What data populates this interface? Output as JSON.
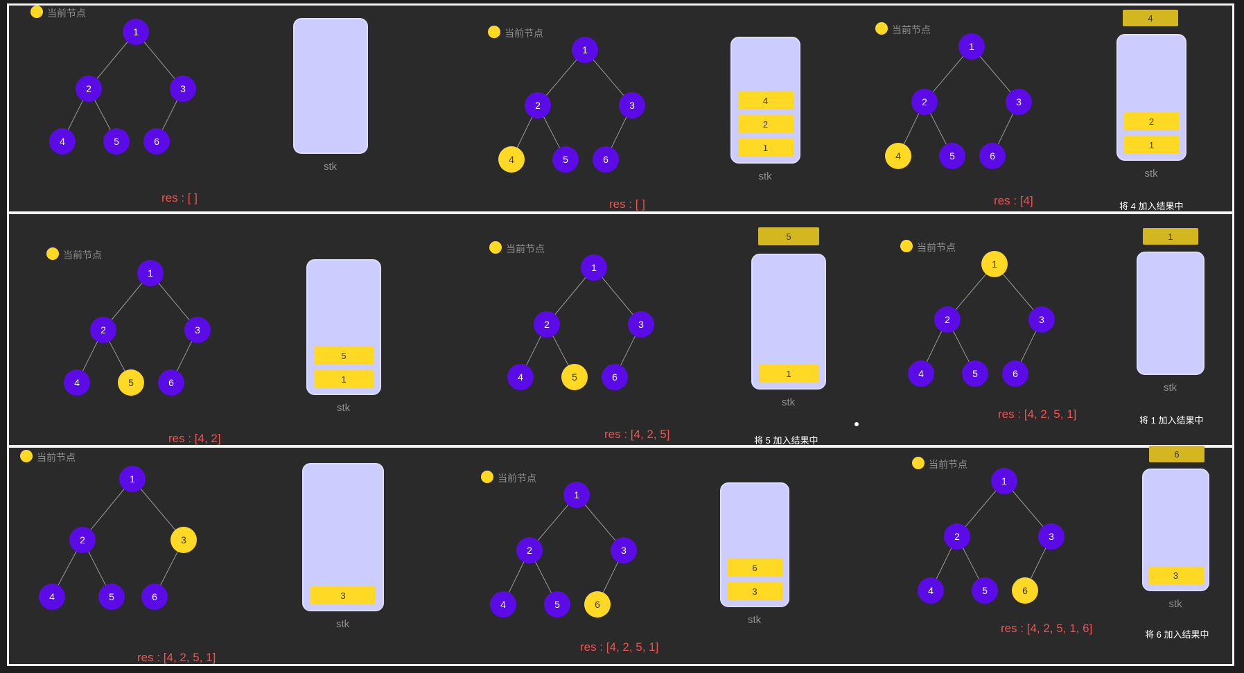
{
  "legend_label": "当前节点",
  "stack_label": "stk",
  "colors": {
    "node": "#5b0be6",
    "current": "#ffd923",
    "stack_bg": "#ccccff",
    "res_text": "#ef5350",
    "background": "#2a2a2a"
  },
  "tree": {
    "nodes": [
      "1",
      "2",
      "3",
      "4",
      "5",
      "6"
    ],
    "edges": [
      [
        "1",
        "2"
      ],
      [
        "1",
        "3"
      ],
      [
        "2",
        "4"
      ],
      [
        "2",
        "5"
      ],
      [
        "3",
        "6"
      ]
    ]
  },
  "panels": [
    {
      "id": "r1c1",
      "current": null,
      "stack": [],
      "popped": null,
      "res": "res : [ ]",
      "note": ""
    },
    {
      "id": "r1c2",
      "current": "4",
      "stack": [
        "4",
        "2",
        "1"
      ],
      "popped": null,
      "res": "res : [ ]",
      "note": ""
    },
    {
      "id": "r1c3",
      "current": "4",
      "stack": [
        "2",
        "1"
      ],
      "popped": "4",
      "res": "res : [4]",
      "note": "将 4 加入结果中"
    },
    {
      "id": "r2c1",
      "current": "5",
      "stack": [
        "5",
        "1"
      ],
      "popped": null,
      "res": "res : [4, 2]",
      "note": ""
    },
    {
      "id": "r2c2",
      "current": "5",
      "stack": [
        "1"
      ],
      "popped": "5",
      "res": "res : [4, 2, 5]",
      "note": "将 5 加入结果中"
    },
    {
      "id": "r2c3",
      "current": "1",
      "stack": [],
      "popped": "1",
      "res": "res : [4, 2, 5, 1]",
      "note": "将 1 加入结果中"
    },
    {
      "id": "r3c1",
      "current": "3",
      "stack": [
        "3"
      ],
      "popped": null,
      "res": "res : [4, 2, 5, 1]",
      "note": ""
    },
    {
      "id": "r3c2",
      "current": "6",
      "stack": [
        "6",
        "3"
      ],
      "popped": null,
      "res": "res : [4, 2, 5, 1]",
      "note": ""
    },
    {
      "id": "r3c3",
      "current": "6",
      "stack": [
        "3"
      ],
      "popped": "6",
      "res": "res : [4, 2, 5, 1, 6]",
      "note": "将 6 加入结果中"
    }
  ]
}
